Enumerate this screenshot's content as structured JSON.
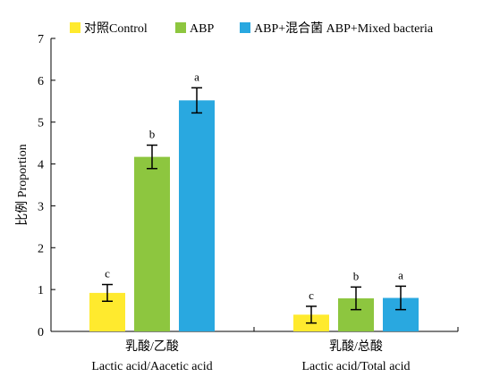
{
  "chart_data": {
    "type": "bar",
    "ylabel": "比例 Proportion",
    "ylim": [
      0,
      7
    ],
    "yticks": [
      0,
      1,
      2,
      3,
      4,
      5,
      6,
      7
    ],
    "categories": [
      {
        "cn": "乳酸/乙酸",
        "en": "Lactic acid/Aacetic acid"
      },
      {
        "cn": "乳酸/总酸",
        "en": "Lactic acid/Total acid"
      }
    ],
    "series": [
      {
        "name": "对照Control",
        "color": "#ffea2e",
        "values": [
          0.92,
          0.4
        ],
        "errors": [
          0.2,
          0.2
        ],
        "letters": [
          "c",
          "c"
        ]
      },
      {
        "name": "ABP",
        "color": "#8dc63f",
        "values": [
          4.17,
          0.79
        ],
        "errors": [
          0.28,
          0.27
        ],
        "letters": [
          "b",
          "b"
        ]
      },
      {
        "name": "ABP+混合菌 ABP+Mixed bacteria",
        "color": "#29a8e0",
        "values": [
          5.52,
          0.8
        ],
        "errors": [
          0.3,
          0.28
        ],
        "letters": [
          "a",
          "a"
        ]
      }
    ],
    "legend_position": "top",
    "grid": false
  }
}
